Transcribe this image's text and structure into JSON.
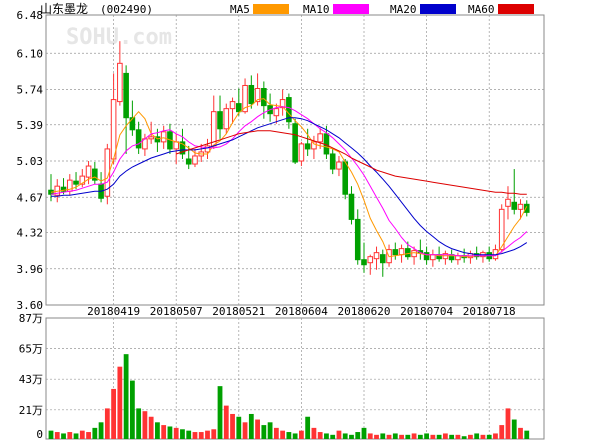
{
  "header": {
    "stock_name": "山东墨龙",
    "stock_code": "(002490)"
  },
  "watermark": "SOHU.com",
  "legend": [
    {
      "label": "MA5",
      "color": "#ff9900"
    },
    {
      "label": "MA10",
      "color": "#ff00ff"
    },
    {
      "label": "MA20",
      "color": "#0000cc"
    },
    {
      "label": "MA60",
      "color": "#dd0000"
    }
  ],
  "colors": {
    "up": "#ff3333",
    "down": "#00a000",
    "grid": "#999999",
    "axis_text": "#000000"
  },
  "chart_data": [
    {
      "type": "candlestick",
      "title": "",
      "y_ticks": [
        "6.48",
        "6.10",
        "5.74",
        "5.39",
        "5.03",
        "4.67",
        "4.32",
        "3.96",
        "3.60"
      ],
      "ylim": [
        3.6,
        6.48
      ],
      "x_tick_labels": [
        "20180419",
        "20180507",
        "20180521",
        "20180604",
        "20180620",
        "20180704",
        "20180718"
      ],
      "x_tick_index": [
        10,
        20,
        30,
        40,
        50,
        60,
        70
      ],
      "candles": [
        {
          "o": 4.74,
          "h": 4.9,
          "l": 4.63,
          "c": 4.7
        },
        {
          "o": 4.69,
          "h": 4.85,
          "l": 4.62,
          "c": 4.78
        },
        {
          "o": 4.77,
          "h": 4.86,
          "l": 4.7,
          "c": 4.73
        },
        {
          "o": 4.73,
          "h": 4.9,
          "l": 4.69,
          "c": 4.84
        },
        {
          "o": 4.83,
          "h": 4.92,
          "l": 4.75,
          "c": 4.8
        },
        {
          "o": 4.8,
          "h": 4.95,
          "l": 4.77,
          "c": 4.88
        },
        {
          "o": 4.87,
          "h": 5.03,
          "l": 4.8,
          "c": 4.98
        },
        {
          "o": 4.95,
          "h": 5.02,
          "l": 4.8,
          "c": 4.84
        },
        {
          "o": 4.8,
          "h": 4.92,
          "l": 4.62,
          "c": 4.66
        },
        {
          "o": 4.68,
          "h": 5.2,
          "l": 4.6,
          "c": 5.15
        },
        {
          "o": 5.05,
          "h": 5.9,
          "l": 5.0,
          "c": 5.64
        },
        {
          "o": 5.62,
          "h": 6.22,
          "l": 5.58,
          "c": 6.0
        },
        {
          "o": 5.9,
          "h": 5.98,
          "l": 5.1,
          "c": 5.46
        },
        {
          "o": 5.46,
          "h": 5.63,
          "l": 5.28,
          "c": 5.34
        },
        {
          "o": 5.34,
          "h": 5.42,
          "l": 5.1,
          "c": 5.16
        },
        {
          "o": 5.15,
          "h": 5.3,
          "l": 5.08,
          "c": 5.25
        },
        {
          "o": 5.25,
          "h": 5.42,
          "l": 5.2,
          "c": 5.27
        },
        {
          "o": 5.27,
          "h": 5.35,
          "l": 5.12,
          "c": 5.22
        },
        {
          "o": 5.22,
          "h": 5.38,
          "l": 5.15,
          "c": 5.32
        },
        {
          "o": 5.32,
          "h": 5.4,
          "l": 5.1,
          "c": 5.15
        },
        {
          "o": 5.15,
          "h": 5.3,
          "l": 5.0,
          "c": 5.22
        },
        {
          "o": 5.22,
          "h": 5.35,
          "l": 5.05,
          "c": 5.1
        },
        {
          "o": 5.05,
          "h": 5.18,
          "l": 4.95,
          "c": 5.0
        },
        {
          "o": 5.0,
          "h": 5.15,
          "l": 4.97,
          "c": 5.08
        },
        {
          "o": 5.08,
          "h": 5.2,
          "l": 5.02,
          "c": 5.12
        },
        {
          "o": 5.12,
          "h": 5.25,
          "l": 5.05,
          "c": 5.18
        },
        {
          "o": 5.18,
          "h": 5.68,
          "l": 5.15,
          "c": 5.52
        },
        {
          "o": 5.52,
          "h": 5.68,
          "l": 5.25,
          "c": 5.35
        },
        {
          "o": 5.35,
          "h": 5.6,
          "l": 5.3,
          "c": 5.55
        },
        {
          "o": 5.55,
          "h": 5.66,
          "l": 5.4,
          "c": 5.62
        },
        {
          "o": 5.6,
          "h": 5.75,
          "l": 5.48,
          "c": 5.52
        },
        {
          "o": 5.52,
          "h": 5.85,
          "l": 5.5,
          "c": 5.78
        },
        {
          "o": 5.78,
          "h": 5.88,
          "l": 5.55,
          "c": 5.6
        },
        {
          "o": 5.62,
          "h": 5.9,
          "l": 5.58,
          "c": 5.75
        },
        {
          "o": 5.75,
          "h": 5.82,
          "l": 5.45,
          "c": 5.58
        },
        {
          "o": 5.58,
          "h": 5.7,
          "l": 5.42,
          "c": 5.5
        },
        {
          "o": 5.48,
          "h": 5.6,
          "l": 5.4,
          "c": 5.55
        },
        {
          "o": 5.56,
          "h": 5.74,
          "l": 5.48,
          "c": 5.64
        },
        {
          "o": 5.66,
          "h": 5.7,
          "l": 5.35,
          "c": 5.42
        },
        {
          "o": 5.4,
          "h": 5.45,
          "l": 5.0,
          "c": 5.02
        },
        {
          "o": 5.03,
          "h": 5.22,
          "l": 4.98,
          "c": 5.2
        },
        {
          "o": 5.2,
          "h": 5.35,
          "l": 5.08,
          "c": 5.15
        },
        {
          "o": 5.15,
          "h": 5.28,
          "l": 5.05,
          "c": 5.22
        },
        {
          "o": 5.22,
          "h": 5.36,
          "l": 5.15,
          "c": 5.3
        },
        {
          "o": 5.3,
          "h": 5.38,
          "l": 5.05,
          "c": 5.1
        },
        {
          "o": 5.1,
          "h": 5.15,
          "l": 4.9,
          "c": 4.95
        },
        {
          "o": 4.95,
          "h": 5.08,
          "l": 4.88,
          "c": 5.02
        },
        {
          "o": 5.02,
          "h": 5.05,
          "l": 4.65,
          "c": 4.7
        },
        {
          "o": 4.7,
          "h": 4.78,
          "l": 4.4,
          "c": 4.45
        },
        {
          "o": 4.45,
          "h": 4.55,
          "l": 4.0,
          "c": 4.05
        },
        {
          "o": 4.05,
          "h": 4.22,
          "l": 3.92,
          "c": 4.0
        },
        {
          "o": 4.02,
          "h": 4.1,
          "l": 3.9,
          "c": 4.08
        },
        {
          "o": 4.06,
          "h": 4.18,
          "l": 3.95,
          "c": 4.12
        },
        {
          "o": 4.1,
          "h": 4.15,
          "l": 3.88,
          "c": 4.02
        },
        {
          "o": 4.02,
          "h": 4.2,
          "l": 3.98,
          "c": 4.15
        },
        {
          "o": 4.15,
          "h": 4.22,
          "l": 4.05,
          "c": 4.1
        },
        {
          "o": 4.1,
          "h": 4.2,
          "l": 4.02,
          "c": 4.16
        },
        {
          "o": 4.16,
          "h": 4.23,
          "l": 4.05,
          "c": 4.08
        },
        {
          "o": 4.08,
          "h": 4.18,
          "l": 4.0,
          "c": 4.14
        },
        {
          "o": 4.14,
          "h": 4.25,
          "l": 4.05,
          "c": 4.12
        },
        {
          "o": 4.12,
          "h": 4.18,
          "l": 4.0,
          "c": 4.05
        },
        {
          "o": 4.05,
          "h": 4.15,
          "l": 3.98,
          "c": 4.1
        },
        {
          "o": 4.1,
          "h": 4.18,
          "l": 4.03,
          "c": 4.06
        },
        {
          "o": 4.06,
          "h": 4.14,
          "l": 4.0,
          "c": 4.11
        },
        {
          "o": 4.1,
          "h": 4.15,
          "l": 4.02,
          "c": 4.05
        },
        {
          "o": 4.05,
          "h": 4.12,
          "l": 4.0,
          "c": 4.09
        },
        {
          "o": 4.09,
          "h": 4.16,
          "l": 4.02,
          "c": 4.07
        },
        {
          "o": 4.07,
          "h": 4.14,
          "l": 4.01,
          "c": 4.11
        },
        {
          "o": 4.11,
          "h": 4.18,
          "l": 4.05,
          "c": 4.08
        },
        {
          "o": 4.08,
          "h": 4.14,
          "l": 4.02,
          "c": 4.12
        },
        {
          "o": 4.12,
          "h": 4.18,
          "l": 4.03,
          "c": 4.06
        },
        {
          "o": 4.06,
          "h": 4.2,
          "l": 4.04,
          "c": 4.15
        },
        {
          "o": 4.15,
          "h": 4.6,
          "l": 4.12,
          "c": 4.55
        },
        {
          "o": 4.58,
          "h": 4.78,
          "l": 4.45,
          "c": 4.65
        },
        {
          "o": 4.62,
          "h": 4.95,
          "l": 4.5,
          "c": 4.55
        },
        {
          "o": 4.55,
          "h": 4.65,
          "l": 4.45,
          "c": 4.6
        },
        {
          "o": 4.6,
          "h": 4.64,
          "l": 4.48,
          "c": 4.52
        }
      ],
      "ma5": [
        4.72,
        4.73,
        4.74,
        4.75,
        4.77,
        4.81,
        4.85,
        4.87,
        4.83,
        4.86,
        5.05,
        5.29,
        5.38,
        5.45,
        5.52,
        5.45,
        5.3,
        5.25,
        5.26,
        5.24,
        5.22,
        5.2,
        5.16,
        5.11,
        5.1,
        5.1,
        5.19,
        5.23,
        5.3,
        5.41,
        5.51,
        5.56,
        5.58,
        5.64,
        5.65,
        5.59,
        5.58,
        5.57,
        5.5,
        5.43,
        5.37,
        5.29,
        5.2,
        5.18,
        5.17,
        5.15,
        5.12,
        5.02,
        4.92,
        4.8,
        4.64,
        4.46,
        4.34,
        4.23,
        4.08,
        4.09,
        4.1,
        4.11,
        4.12,
        4.11,
        4.1,
        4.1,
        4.09,
        4.09,
        4.09,
        4.09,
        4.08,
        4.08,
        4.09,
        4.09,
        4.1,
        4.09,
        4.18,
        4.28,
        4.38,
        4.46,
        4.58
      ],
      "ma10": [
        4.7,
        4.71,
        4.72,
        4.73,
        4.74,
        4.76,
        4.78,
        4.8,
        4.8,
        4.82,
        4.92,
        5.05,
        5.13,
        5.18,
        5.2,
        5.25,
        5.3,
        5.31,
        5.33,
        5.34,
        5.3,
        5.27,
        5.22,
        5.18,
        5.17,
        5.16,
        5.16,
        5.17,
        5.2,
        5.25,
        5.32,
        5.38,
        5.42,
        5.47,
        5.51,
        5.54,
        5.56,
        5.57,
        5.56,
        5.53,
        5.49,
        5.45,
        5.4,
        5.35,
        5.31,
        5.26,
        5.2,
        5.14,
        5.06,
        4.98,
        4.89,
        4.78,
        4.67,
        4.56,
        4.44,
        4.36,
        4.27,
        4.2,
        4.16,
        4.12,
        4.1,
        4.1,
        4.1,
        4.1,
        4.1,
        4.09,
        4.09,
        4.09,
        4.09,
        4.09,
        4.09,
        4.09,
        4.13,
        4.18,
        4.23,
        4.27,
        4.33
      ],
      "ma20": [
        4.68,
        4.68,
        4.69,
        4.69,
        4.7,
        4.71,
        4.72,
        4.73,
        4.73,
        4.75,
        4.8,
        4.88,
        4.93,
        4.97,
        5.0,
        5.03,
        5.06,
        5.08,
        5.1,
        5.12,
        5.13,
        5.14,
        5.14,
        5.14,
        5.15,
        5.16,
        5.18,
        5.2,
        5.22,
        5.24,
        5.27,
        5.3,
        5.33,
        5.36,
        5.38,
        5.4,
        5.42,
        5.44,
        5.46,
        5.46,
        5.45,
        5.43,
        5.4,
        5.37,
        5.34,
        5.3,
        5.26,
        5.21,
        5.16,
        5.11,
        5.05,
        4.98,
        4.92,
        4.85,
        4.78,
        4.7,
        4.62,
        4.54,
        4.46,
        4.39,
        4.33,
        4.28,
        4.23,
        4.19,
        4.16,
        4.14,
        4.12,
        4.11,
        4.1,
        4.1,
        4.1,
        4.1,
        4.11,
        4.13,
        4.15,
        4.18,
        4.22
      ],
      "ma60": [
        null,
        null,
        null,
        null,
        null,
        null,
        null,
        null,
        null,
        null,
        null,
        null,
        null,
        null,
        null,
        null,
        null,
        null,
        null,
        null,
        5.1,
        5.12,
        5.14,
        5.16,
        5.18,
        5.2,
        5.22,
        5.24,
        5.26,
        5.28,
        5.3,
        5.31,
        5.32,
        5.33,
        5.33,
        5.33,
        5.32,
        5.31,
        5.3,
        5.29,
        5.27,
        5.25,
        5.23,
        5.21,
        5.19,
        5.16,
        5.13,
        5.1,
        5.06,
        5.03,
        5.0,
        4.97,
        4.94,
        4.92,
        4.9,
        4.88,
        4.87,
        4.86,
        4.85,
        4.84,
        4.83,
        4.82,
        4.81,
        4.8,
        4.79,
        4.78,
        4.77,
        4.76,
        4.75,
        4.74,
        4.73,
        4.72,
        4.72,
        4.71,
        4.71,
        4.7,
        4.7
      ]
    },
    {
      "type": "bar",
      "title": "",
      "y_ticks": [
        "87万",
        "65万",
        "43万",
        "21万",
        "0"
      ],
      "ylim": [
        0,
        87
      ],
      "values": [
        6,
        5,
        4,
        5,
        4,
        6,
        5,
        8,
        12,
        22,
        36,
        52,
        61,
        42,
        22,
        20,
        16,
        12,
        10,
        9,
        8,
        7,
        6,
        5,
        5,
        6,
        7,
        38,
        24,
        18,
        16,
        12,
        18,
        14,
        10,
        12,
        8,
        6,
        5,
        4,
        6,
        16,
        8,
        5,
        4,
        3,
        6,
        4,
        3,
        5,
        8,
        4,
        3,
        4,
        3,
        4,
        3,
        3,
        4,
        3,
        4,
        3,
        3,
        4,
        3,
        3,
        2,
        3,
        4,
        3,
        3,
        4,
        10,
        22,
        14,
        8,
        6
      ]
    }
  ]
}
